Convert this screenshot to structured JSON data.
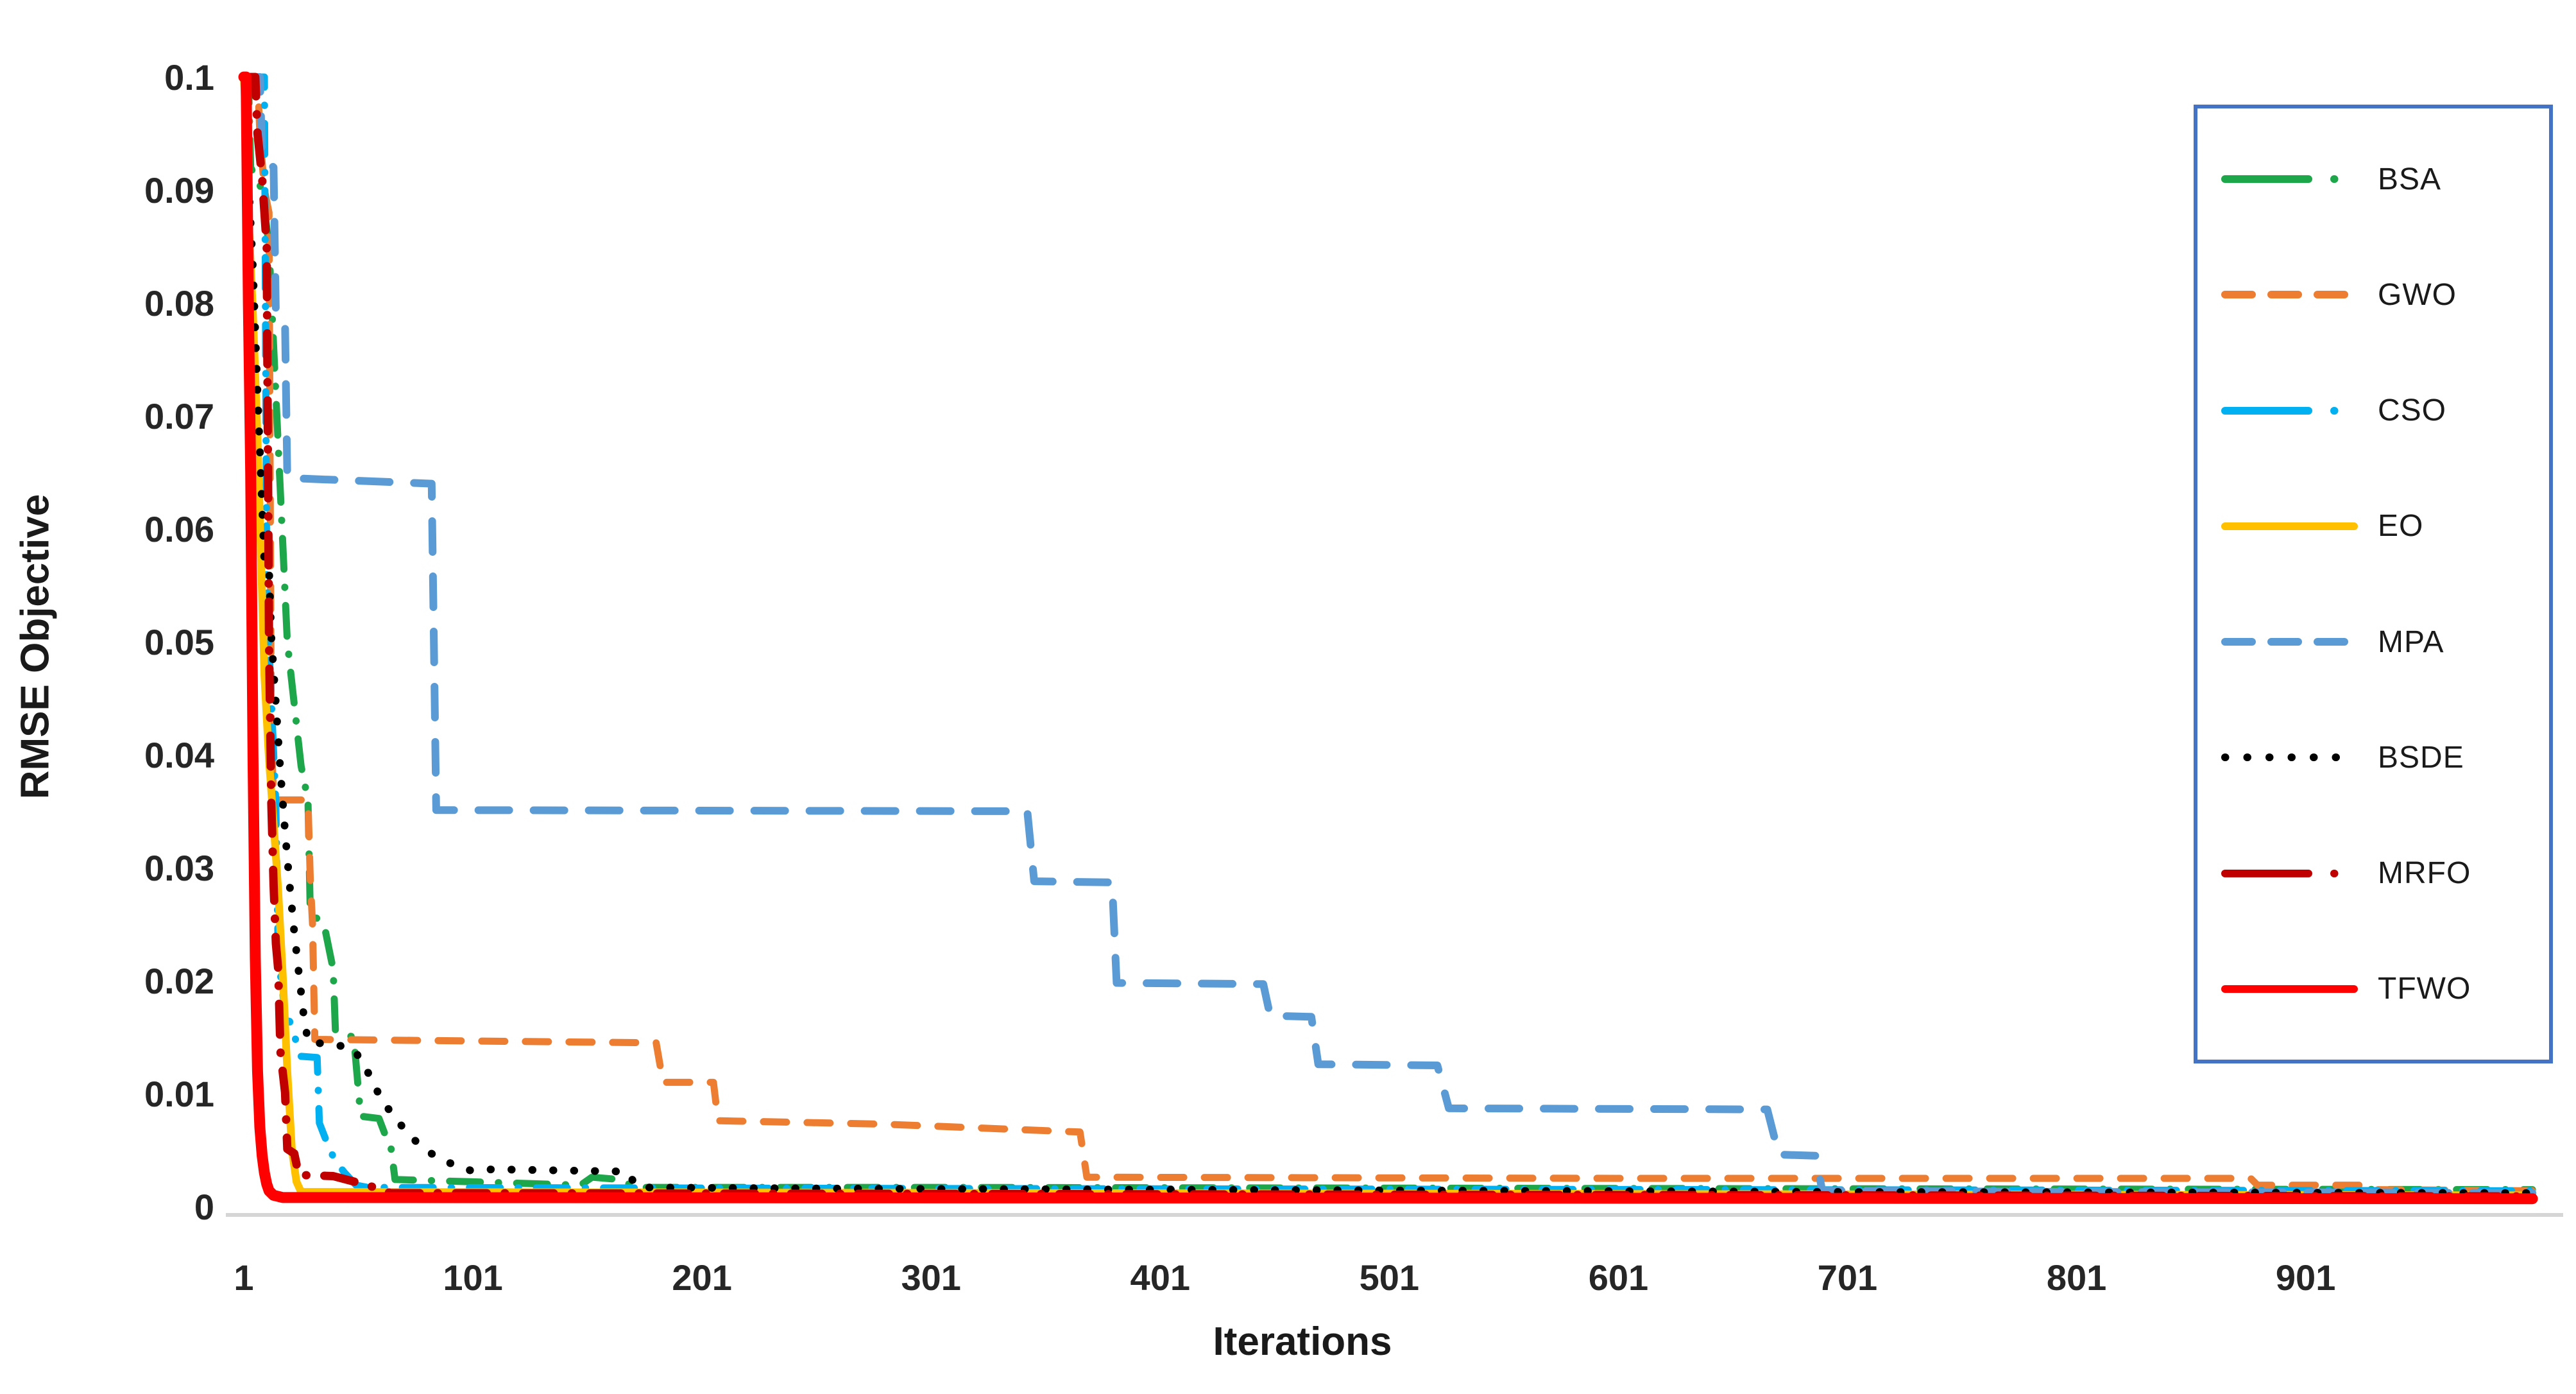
{
  "chart_data": {
    "type": "line",
    "title": "",
    "xlabel": "Iterations",
    "ylabel": "RMSE Objective",
    "xlim": [
      1,
      1010
    ],
    "ylim": [
      0,
      0.1
    ],
    "grid": false,
    "x_ticks": [
      1,
      101,
      201,
      301,
      401,
      501,
      601,
      701,
      801,
      901
    ],
    "y_ticks": [
      0.1,
      0.09,
      0.08,
      0.07,
      0.06,
      0.05,
      0.04,
      0.03,
      0.02,
      0.01,
      0
    ],
    "y_tick_labels": [
      "0.1",
      "0.09",
      "0.08",
      "0.07",
      "0.06",
      "0.05",
      "0.04",
      "0.03",
      "0.02",
      "0.01",
      "0"
    ],
    "axis_line_color": "#D6D6D6",
    "legend_position": "right-box",
    "legend_border_color": "#4472C4",
    "series": [
      {
        "name": "BSA",
        "color": "#1EA64A",
        "line_style": "dashdot",
        "width": 11,
        "points": [
          [
            1,
            0.1
          ],
          [
            3,
            0.1
          ],
          [
            4,
            0.092
          ],
          [
            9,
            0.09
          ],
          [
            12,
            0.085
          ],
          [
            20,
            0.05
          ],
          [
            26,
            0.039
          ],
          [
            29,
            0.036
          ],
          [
            30,
            0.026
          ],
          [
            36,
            0.025
          ],
          [
            39,
            0.022
          ],
          [
            40,
            0.021
          ],
          [
            41,
            0.0155
          ],
          [
            49,
            0.015
          ],
          [
            52,
            0.008
          ],
          [
            60,
            0.0078
          ],
          [
            63,
            0.0062
          ],
          [
            65,
            0.0056
          ],
          [
            67,
            0.0024
          ],
          [
            100,
            0.0022
          ],
          [
            148,
            0.0019
          ],
          [
            153,
            0.0026
          ],
          [
            165,
            0.0024
          ],
          [
            172,
            0.0017
          ],
          [
            300,
            0.0017
          ],
          [
            600,
            0.0016
          ],
          [
            1000,
            0.0015
          ]
        ]
      },
      {
        "name": "GWO",
        "color": "#ED7D31",
        "line_style": "dashed",
        "width": 11,
        "points": [
          [
            1,
            0.1
          ],
          [
            7,
            0.1
          ],
          [
            8,
            0.095
          ],
          [
            10,
            0.09
          ],
          [
            12,
            0.088
          ],
          [
            13,
            0.042
          ],
          [
            14,
            0.036
          ],
          [
            29,
            0.036
          ],
          [
            30,
            0.029
          ],
          [
            31,
            0.025
          ],
          [
            32,
            0.0148
          ],
          [
            181,
            0.0145
          ],
          [
            184,
            0.011
          ],
          [
            206,
            0.011
          ],
          [
            208,
            0.0076
          ],
          [
            280,
            0.0073
          ],
          [
            366,
            0.0066
          ],
          [
            369,
            0.0026
          ],
          [
            600,
            0.0025
          ],
          [
            877,
            0.0025
          ],
          [
            880,
            0.0019
          ],
          [
            928,
            0.0019
          ],
          [
            931,
            0.0015
          ],
          [
            1000,
            0.0014
          ]
        ]
      },
      {
        "name": "CSO",
        "color": "#00B0F0",
        "line_style": "dashdot",
        "width": 11,
        "points": [
          [
            1,
            0.1
          ],
          [
            10,
            0.1
          ],
          [
            11,
            0.056
          ],
          [
            12,
            0.0497
          ],
          [
            13,
            0.045
          ],
          [
            15,
            0.0355
          ],
          [
            16,
            0.022
          ],
          [
            18,
            0.019
          ],
          [
            19,
            0.0165
          ],
          [
            21,
            0.0164
          ],
          [
            26,
            0.0133
          ],
          [
            33,
            0.0132
          ],
          [
            34,
            0.0074
          ],
          [
            38,
            0.0053
          ],
          [
            41,
            0.004
          ],
          [
            45,
            0.003
          ],
          [
            50,
            0.0019
          ],
          [
            55,
            0.0017
          ],
          [
            300,
            0.0016
          ],
          [
            1000,
            0.0014
          ]
        ]
      },
      {
        "name": "EO",
        "color": "#FFC000",
        "line_style": "solid",
        "width": 12,
        "points": [
          [
            1,
            0.1
          ],
          [
            2,
            0.096
          ],
          [
            3,
            0.088
          ],
          [
            5,
            0.079
          ],
          [
            7,
            0.068
          ],
          [
            9,
            0.054
          ],
          [
            10,
            0.047
          ],
          [
            12,
            0.0395
          ],
          [
            14,
            0.034
          ],
          [
            16,
            0.028
          ],
          [
            18,
            0.0205
          ],
          [
            20,
            0.012
          ],
          [
            22,
            0.005
          ],
          [
            24,
            0.0022
          ],
          [
            26,
            0.0013
          ],
          [
            1000,
            0.001
          ]
        ]
      },
      {
        "name": "MPA",
        "color": "#5B9BD5",
        "line_style": "dashed-long",
        "width": 12,
        "points": [
          [
            1,
            0.1
          ],
          [
            8,
            0.1
          ],
          [
            9,
            0.093
          ],
          [
            14,
            0.092
          ],
          [
            15,
            0.079
          ],
          [
            19,
            0.078
          ],
          [
            20,
            0.0645
          ],
          [
            83,
            0.064
          ],
          [
            85,
            0.0351
          ],
          [
            343,
            0.035
          ],
          [
            346,
            0.0288
          ],
          [
            380,
            0.0287
          ],
          [
            382,
            0.0198
          ],
          [
            446,
            0.0197
          ],
          [
            449,
            0.0169
          ],
          [
            467,
            0.0168
          ],
          [
            470,
            0.0126
          ],
          [
            522,
            0.0125
          ],
          [
            527,
            0.0087
          ],
          [
            666,
            0.0086
          ],
          [
            671,
            0.0046
          ],
          [
            687,
            0.0045
          ],
          [
            690,
            0.0014
          ],
          [
            800,
            0.0013
          ],
          [
            1000,
            0.0012
          ]
        ]
      },
      {
        "name": "BSDE",
        "color": "#000000",
        "line_style": "dotted",
        "width": 12,
        "points": [
          [
            1,
            0.1
          ],
          [
            2,
            0.096
          ],
          [
            3,
            0.091
          ],
          [
            5,
            0.083
          ],
          [
            7,
            0.072
          ],
          [
            9,
            0.062
          ],
          [
            10,
            0.057
          ],
          [
            12,
            0.0565
          ],
          [
            13,
            0.0505
          ],
          [
            15,
            0.0445
          ],
          [
            17,
            0.0385
          ],
          [
            19,
            0.0332
          ],
          [
            21,
            0.0285
          ],
          [
            23,
            0.0243
          ],
          [
            25,
            0.0207
          ],
          [
            27,
            0.0172
          ],
          [
            29,
            0.0146
          ],
          [
            48,
            0.0141
          ],
          [
            53,
            0.0128
          ],
          [
            58,
            0.0107
          ],
          [
            62,
            0.0092
          ],
          [
            67,
            0.0079
          ],
          [
            72,
            0.0066
          ],
          [
            77,
            0.0056
          ],
          [
            82,
            0.0048
          ],
          [
            88,
            0.0041
          ],
          [
            94,
            0.0036
          ],
          [
            100,
            0.0032
          ],
          [
            110,
            0.0033
          ],
          [
            140,
            0.0032
          ],
          [
            168,
            0.0031
          ],
          [
            173,
            0.0017
          ],
          [
            250,
            0.0016
          ],
          [
            400,
            0.0015
          ],
          [
            700,
            0.0013
          ],
          [
            1000,
            0.0012
          ]
        ]
      },
      {
        "name": "MRFO",
        "color": "#C00000",
        "line_style": "dashdot",
        "width": 13,
        "points": [
          [
            1,
            0.1
          ],
          [
            6,
            0.1
          ],
          [
            7,
            0.095
          ],
          [
            9,
            0.091
          ],
          [
            11,
            0.085
          ],
          [
            12,
            0.05
          ],
          [
            13,
            0.036
          ],
          [
            14,
            0.0285
          ],
          [
            15,
            0.0233
          ],
          [
            16,
            0.021
          ],
          [
            17,
            0.0137
          ],
          [
            19,
            0.0101
          ],
          [
            20,
            0.0051
          ],
          [
            23,
            0.0047
          ],
          [
            25,
            0.0028
          ],
          [
            40,
            0.0027
          ],
          [
            55,
            0.0019
          ],
          [
            65,
            0.0012
          ],
          [
            1000,
            0.0009
          ]
        ]
      },
      {
        "name": "TFWO",
        "color": "#FF0000",
        "line_style": "solid",
        "width": 17,
        "points": [
          [
            1,
            0.1
          ],
          [
            2,
            0.1
          ],
          [
            3,
            0.08
          ],
          [
            4,
            0.065
          ],
          [
            5,
            0.04
          ],
          [
            6,
            0.022
          ],
          [
            7,
            0.012
          ],
          [
            8,
            0.007
          ],
          [
            9,
            0.0045
          ],
          [
            10,
            0.003
          ],
          [
            11,
            0.002
          ],
          [
            12,
            0.0014
          ],
          [
            14,
            0.001
          ],
          [
            18,
            0.0008
          ],
          [
            1000,
            0.0007
          ]
        ]
      }
    ]
  }
}
